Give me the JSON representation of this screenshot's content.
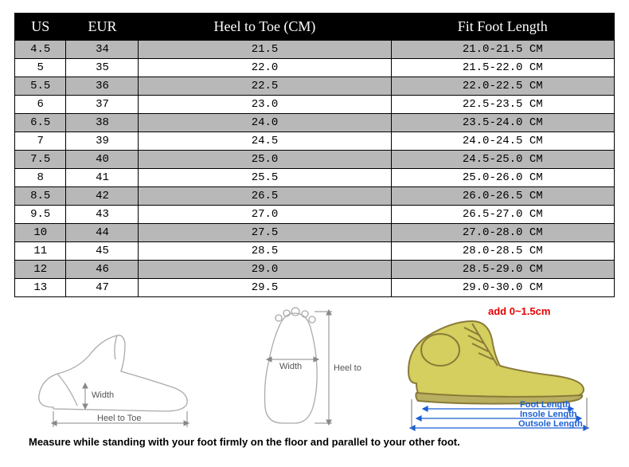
{
  "table": {
    "columns": [
      "US",
      "EUR",
      "Heel to Toe (CM)",
      "Fit Foot Length"
    ],
    "header_bg": "#000000",
    "header_fg": "#ffffff",
    "alt_row_bg": "#b8b8b8",
    "border_color": "#000000",
    "header_fontsize": 18,
    "cell_fontsize": 14,
    "rows": [
      [
        "4.5",
        "34",
        "21.5",
        "21.0-21.5 CM"
      ],
      [
        "5",
        "35",
        "22.0",
        "21.5-22.0 CM"
      ],
      [
        "5.5",
        "36",
        "22.5",
        "22.0-22.5 CM"
      ],
      [
        "6",
        "37",
        "23.0",
        "22.5-23.5 CM"
      ],
      [
        "6.5",
        "38",
        "24.0",
        "23.5-24.0 CM"
      ],
      [
        "7",
        "39",
        "24.5",
        "24.0-24.5 CM"
      ],
      [
        "7.5",
        "40",
        "25.0",
        "24.5-25.0 CM"
      ],
      [
        "8",
        "41",
        "25.5",
        "25.0-26.0 CM"
      ],
      [
        "8.5",
        "42",
        "26.5",
        "26.0-26.5 CM"
      ],
      [
        "9.5",
        "43",
        "27.0",
        "26.5-27.0 CM"
      ],
      [
        "10",
        "44",
        "27.5",
        "27.0-28.0 CM"
      ],
      [
        "11",
        "45",
        "28.5",
        "28.0-28.5 CM"
      ],
      [
        "12",
        "46",
        "29.0",
        "28.5-29.0 CM"
      ],
      [
        "13",
        "47",
        "29.5",
        "29.0-30.0 CM"
      ]
    ]
  },
  "diagrams": {
    "foot_side": {
      "stroke_color": "#aaaaaa",
      "label1": "Width",
      "label2": "Heel to Toe",
      "label_color": "#555555",
      "label_fontsize": 11
    },
    "foot_top": {
      "stroke_color": "#aaaaaa",
      "label1": "Width",
      "label2": "Heel to Toe",
      "label_color": "#555555",
      "label_fontsize": 11
    },
    "shoe": {
      "fill_color": "#d4cf5e",
      "stroke_color": "#8a7a3a",
      "add_text": "add 0~1.5cm",
      "add_color": "#e60000",
      "foot_length_text": "Foot Length",
      "insole_length_text": "Insole Length",
      "outsole_length_text": "Outsole Length",
      "arrow_color": "#1a5fd4",
      "label_color": "#1a5fd4",
      "label_fontsize": 11
    }
  },
  "instruction": "Measure while standing with your foot firmly on the floor and parallel to your other foot."
}
